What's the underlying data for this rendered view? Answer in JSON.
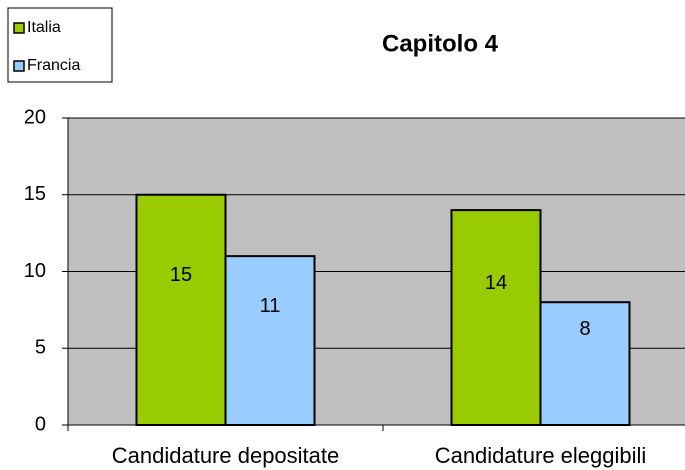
{
  "chart_data": {
    "type": "bar",
    "title": "Capitolo 4",
    "categories": [
      "Candidature depositate",
      "Candidature eleggibili"
    ],
    "series": [
      {
        "name": "Italia",
        "color": "#99cc00",
        "values": [
          15,
          14
        ]
      },
      {
        "name": "Francia",
        "color": "#99ccff",
        "values": [
          11,
          8
        ]
      }
    ],
    "ylim": [
      0,
      20
    ],
    "yticks": [
      0,
      5,
      10,
      15,
      20
    ],
    "grid": true,
    "legend": "top-left"
  }
}
